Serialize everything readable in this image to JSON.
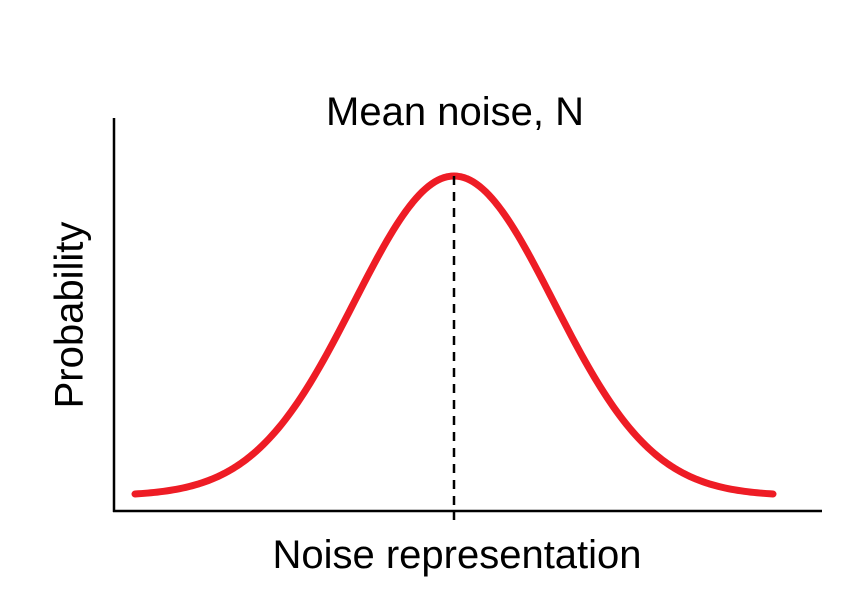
{
  "chart_data": {
    "type": "line",
    "title": "",
    "xlabel": "Noise representation",
    "ylabel": "Probability",
    "annotations": [
      {
        "text": "Mean noise, N",
        "x": 0
      }
    ],
    "xlim": [
      -3.2,
      3.2
    ],
    "ylim": [
      0,
      1.05
    ],
    "grid": false,
    "legend": "none",
    "series": [
      {
        "color": "#ee1c25",
        "x": [
          -3.2,
          -2.8,
          -2.4,
          -2.0,
          -1.6,
          -1.2,
          -0.8,
          -0.4,
          0,
          0.4,
          0.8,
          1.2,
          1.6,
          2.0,
          2.4,
          2.8,
          3.2
        ],
        "values": [
          0.006,
          0.02,
          0.056,
          0.135,
          0.278,
          0.487,
          0.726,
          0.923,
          1.0,
          0.923,
          0.726,
          0.487,
          0.278,
          0.135,
          0.056,
          0.02,
          0.006
        ]
      }
    ],
    "mean_line": {
      "x": 0,
      "style": "dashed",
      "color": "#000000"
    }
  }
}
